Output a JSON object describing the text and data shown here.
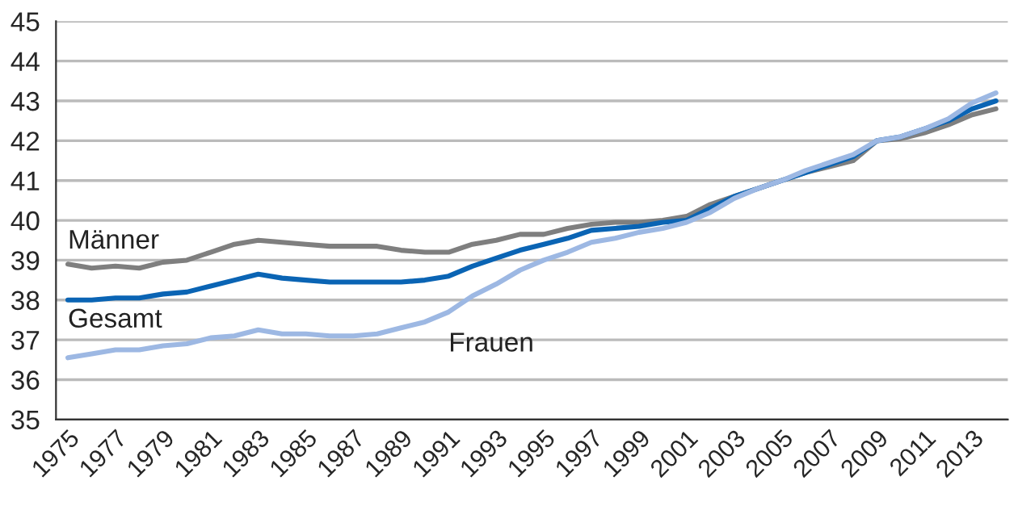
{
  "chart_data": {
    "type": "line",
    "categories": [
      "1975",
      null,
      "1977",
      null,
      "1979",
      null,
      "1981",
      null,
      "1983",
      null,
      "1985",
      null,
      "1987",
      null,
      "1989",
      null,
      "1991",
      null,
      "1993",
      null,
      "1995",
      null,
      "1997",
      null,
      "1999",
      null,
      "2001",
      null,
      "2003",
      null,
      "2005",
      null,
      "2007",
      null,
      "2009",
      null,
      "2011",
      null,
      "2013",
      null
    ],
    "ylim": [
      35,
      45
    ],
    "yticks": [
      35,
      36,
      37,
      38,
      39,
      40,
      41,
      42,
      43,
      44,
      45
    ],
    "grid": "y",
    "legend": false,
    "marker": "none",
    "line_style": "solid",
    "series": [
      {
        "name": "Männer",
        "color": "#7f7f7f",
        "values": [
          38.9,
          38.8,
          38.85,
          38.8,
          38.95,
          39.0,
          39.2,
          39.4,
          39.5,
          39.45,
          39.4,
          39.35,
          39.35,
          39.35,
          39.25,
          39.2,
          39.2,
          39.4,
          39.5,
          39.65,
          39.65,
          39.8,
          39.9,
          39.95,
          39.95,
          40.0,
          40.1,
          40.4,
          40.6,
          40.8,
          41.0,
          41.2,
          41.35,
          41.5,
          42.0,
          42.05,
          42.2,
          42.4,
          42.65,
          42.8
        ]
      },
      {
        "name": "Gesamt",
        "color": "#0a64b4",
        "values": [
          38.0,
          38.0,
          38.05,
          38.05,
          38.15,
          38.2,
          38.35,
          38.5,
          38.65,
          38.55,
          38.5,
          38.45,
          38.45,
          38.45,
          38.45,
          38.5,
          38.6,
          38.85,
          39.05,
          39.25,
          39.4,
          39.55,
          39.75,
          39.8,
          39.85,
          39.95,
          40.0,
          40.3,
          40.6,
          40.8,
          41.0,
          41.2,
          41.4,
          41.6,
          42.0,
          42.1,
          42.3,
          42.5,
          42.8,
          43.0
        ]
      },
      {
        "name": "Frauen",
        "color": "#9db8e3",
        "values": [
          36.55,
          36.65,
          36.75,
          36.75,
          36.85,
          36.9,
          37.05,
          37.1,
          37.25,
          37.15,
          37.15,
          37.1,
          37.1,
          37.15,
          37.3,
          37.45,
          37.7,
          38.1,
          38.4,
          38.75,
          39.0,
          39.2,
          39.45,
          39.55,
          39.7,
          39.8,
          39.95,
          40.2,
          40.55,
          40.8,
          41.0,
          41.25,
          41.45,
          41.65,
          42.0,
          42.1,
          42.3,
          42.55,
          42.95,
          43.2
        ]
      }
    ]
  }
}
